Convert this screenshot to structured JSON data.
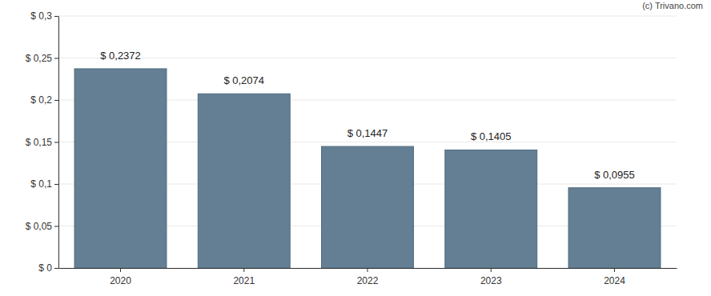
{
  "chart_data": {
    "type": "bar",
    "annotations": [
      "(c) Trivano.com"
    ],
    "categories": [
      "2020",
      "2021",
      "2022",
      "2023",
      "2024"
    ],
    "values": [
      0.2372,
      0.2074,
      0.1447,
      0.1405,
      0.0955
    ],
    "value_labels": [
      "$ 0,2372",
      "$ 0,2074",
      "$ 0,1447",
      "$ 0,1405",
      "$ 0,0955"
    ],
    "data_labels": true,
    "color": "#647f94",
    "ylim": [
      0,
      0.3
    ],
    "yticks": [
      {
        "value": 0,
        "label": "$ 0"
      },
      {
        "value": 0.05,
        "label": "$ 0,05"
      },
      {
        "value": 0.1,
        "label": "$ 0,1"
      },
      {
        "value": 0.15,
        "label": "$ 0,15"
      },
      {
        "value": 0.2,
        "label": "$ 0,2"
      },
      {
        "value": 0.25,
        "label": "$ 0,25"
      },
      {
        "value": 0.3,
        "label": "$ 0,3"
      }
    ],
    "grid": true
  }
}
